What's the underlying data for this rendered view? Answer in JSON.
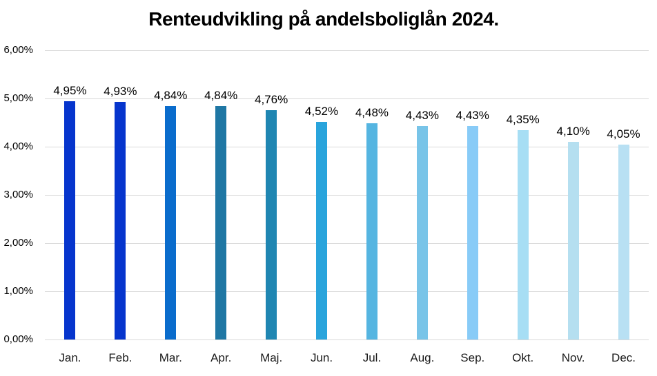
{
  "chart_data": {
    "type": "bar",
    "title": "Renteudvikling på andelsboliglån 2024.",
    "categories": [
      "Jan.",
      "Feb.",
      "Mar.",
      "Apr.",
      "Maj.",
      "Jun.",
      "Jul.",
      "Aug.",
      "Sep.",
      "Okt.",
      "Nov.",
      "Dec."
    ],
    "values": [
      4.95,
      4.93,
      4.84,
      4.84,
      4.76,
      4.52,
      4.48,
      4.43,
      4.43,
      4.35,
      4.1,
      4.05
    ],
    "value_labels": [
      "4,95%",
      "4,93%",
      "4,84%",
      "4,84%",
      "4,76%",
      "4,52%",
      "4,48%",
      "4,43%",
      "4,43%",
      "4,35%",
      "4,10%",
      "4,05%"
    ],
    "bar_colors": [
      "#0635CD",
      "#0635CD",
      "#0A6CCC",
      "#1F77A4",
      "#1F86B2",
      "#29A4DC",
      "#55B5E1",
      "#78C4E8",
      "#88CBF7",
      "#A7DEF4",
      "#B5DFF0",
      "#B8E0F3"
    ],
    "xlabel": "",
    "ylabel": "",
    "ylim": [
      0,
      6
    ],
    "y_ticks": [
      {
        "value": 0,
        "label": "0,00%"
      },
      {
        "value": 1,
        "label": "1,00%"
      },
      {
        "value": 2,
        "label": "2,00%"
      },
      {
        "value": 3,
        "label": "3,00%"
      },
      {
        "value": 4,
        "label": "4,00%"
      },
      {
        "value": 5,
        "label": "5,00%"
      },
      {
        "value": 6,
        "label": "6,00%"
      }
    ],
    "grid": true,
    "gridline_color": "#d8d8d8",
    "legend_position": "none"
  }
}
